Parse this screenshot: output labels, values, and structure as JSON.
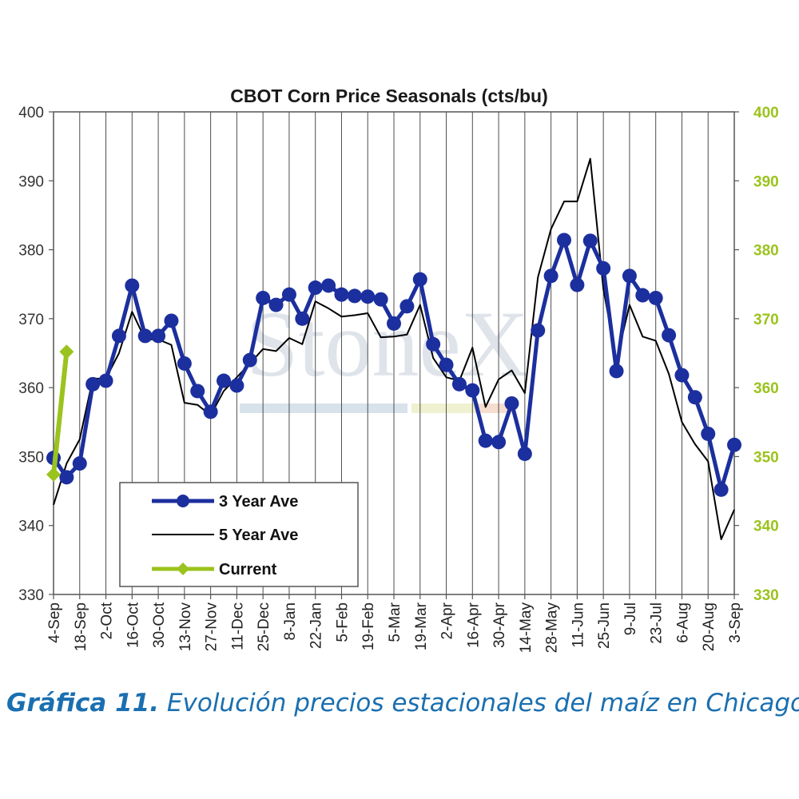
{
  "chart_data": {
    "type": "line",
    "title": "CBOT Corn Price Seasonals (cts/bu)",
    "watermark": "StoneX",
    "ylim": [
      330,
      400
    ],
    "yticks": [
      330,
      340,
      350,
      360,
      370,
      380,
      390,
      400
    ],
    "yticks_right": [
      330,
      340,
      350,
      360,
      370,
      380,
      390,
      400
    ],
    "grid": "vertical",
    "legend_position": "bottom-left",
    "x_tick_labels": [
      "4-Sep",
      "18-Sep",
      "2-Oct",
      "16-Oct",
      "30-Oct",
      "13-Nov",
      "27-Nov",
      "11-Dec",
      "25-Dec",
      "8-Jan",
      "22-Jan",
      "5-Feb",
      "19-Feb",
      "5-Mar",
      "19-Mar",
      "2-Apr",
      "16-Apr",
      "30-Apr",
      "14-May",
      "28-May",
      "11-Jun",
      "25-Jun",
      "9-Jul",
      "23-Jul",
      "6-Aug",
      "20-Aug",
      "3-Sep"
    ],
    "series": [
      {
        "name": "3 Year Ave",
        "color": "#1c2f9e",
        "values": [
          349.8,
          347.0,
          349.0,
          360.5,
          361.0,
          367.5,
          374.8,
          367.5,
          367.5,
          369.7,
          363.5,
          359.5,
          356.5,
          361.0,
          360.3,
          364.0,
          373.0,
          372.0,
          373.5,
          370.0,
          374.5,
          374.8,
          373.5,
          373.3,
          373.2,
          372.8,
          369.3,
          371.8,
          375.7,
          366.3,
          363.3,
          360.5,
          359.6,
          352.3,
          352.1,
          357.7,
          350.4,
          368.3,
          376.2,
          381.4,
          374.9,
          381.3,
          377.3,
          362.4,
          376.2,
          373.4,
          373.0,
          367.6,
          361.8,
          358.6,
          353.3,
          345.2,
          351.7
        ]
      },
      {
        "name": "5 Year Ave",
        "color": "#000000",
        "values": [
          343.0,
          349.0,
          352.5,
          361.3,
          361.3,
          365.0,
          371.0,
          367.0,
          367.0,
          366.2,
          357.8,
          357.5,
          356.0,
          359.5,
          361.5,
          363.5,
          365.6,
          365.3,
          367.2,
          366.3,
          372.5,
          371.5,
          370.3,
          370.5,
          370.8,
          367.3,
          367.4,
          367.7,
          372.0,
          364.3,
          361.5,
          361.0,
          365.8,
          357.2,
          361.2,
          362.5,
          359.2,
          376.0,
          383.0,
          387.0,
          387.0,
          393.2,
          374.3,
          364.0,
          372.0,
          367.4,
          366.8,
          362.0,
          355.0,
          351.8,
          349.3,
          338.0,
          342.3
        ]
      },
      {
        "name": "Current",
        "color": "#9bc31d",
        "values": [
          347.4,
          365.2
        ]
      }
    ]
  },
  "caption": {
    "prefix": "Gráfica 11.",
    "text": " Evolución precios estacionales del maíz en Chicago."
  }
}
